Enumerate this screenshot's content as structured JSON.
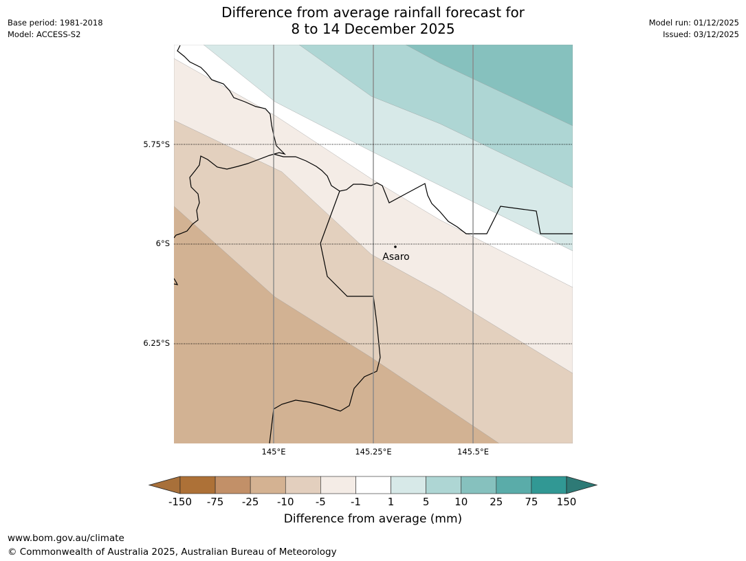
{
  "header": {
    "title_line1": "Difference from average rainfall forecast for",
    "title_line2": "8 to 14 December 2025",
    "base_period": "Base period: 1981-2018",
    "model": "Model: ACCESS-S2",
    "model_run": "Model run: 01/12/2025",
    "issued": "Issued: 03/12/2025"
  },
  "map": {
    "lat_labels": [
      "5.75°S",
      "6°S",
      "6.25°S"
    ],
    "lon_labels": [
      "145°E",
      "145.25°E",
      "145.5°E"
    ],
    "place": {
      "name": "Asaro"
    },
    "band_colors": [
      "#d2b293",
      "#e3d0be",
      "#f4ece6",
      "#ffffff",
      "#d7e9e8",
      "#aed6d4",
      "#86c1be"
    ]
  },
  "legend": {
    "title": "Difference from average (mm)",
    "ticks": [
      "-150",
      "-75",
      "-25",
      "-10",
      "-5",
      "-1",
      "1",
      "5",
      "10",
      "25",
      "75",
      "150"
    ],
    "colors": [
      "#a8703a",
      "#ad7137",
      "#c29068",
      "#d4b292",
      "#e3cfbe",
      "#f4ece6",
      "#ffffff",
      "#d7e9e8",
      "#aed6d4",
      "#86c1be",
      "#5aaca9",
      "#319894",
      "#2e7a76"
    ]
  },
  "footer": {
    "url": "www.bom.gov.au/climate",
    "copyright": "© Commonwealth of Australia 2025, Australian Bureau of Meteorology"
  }
}
